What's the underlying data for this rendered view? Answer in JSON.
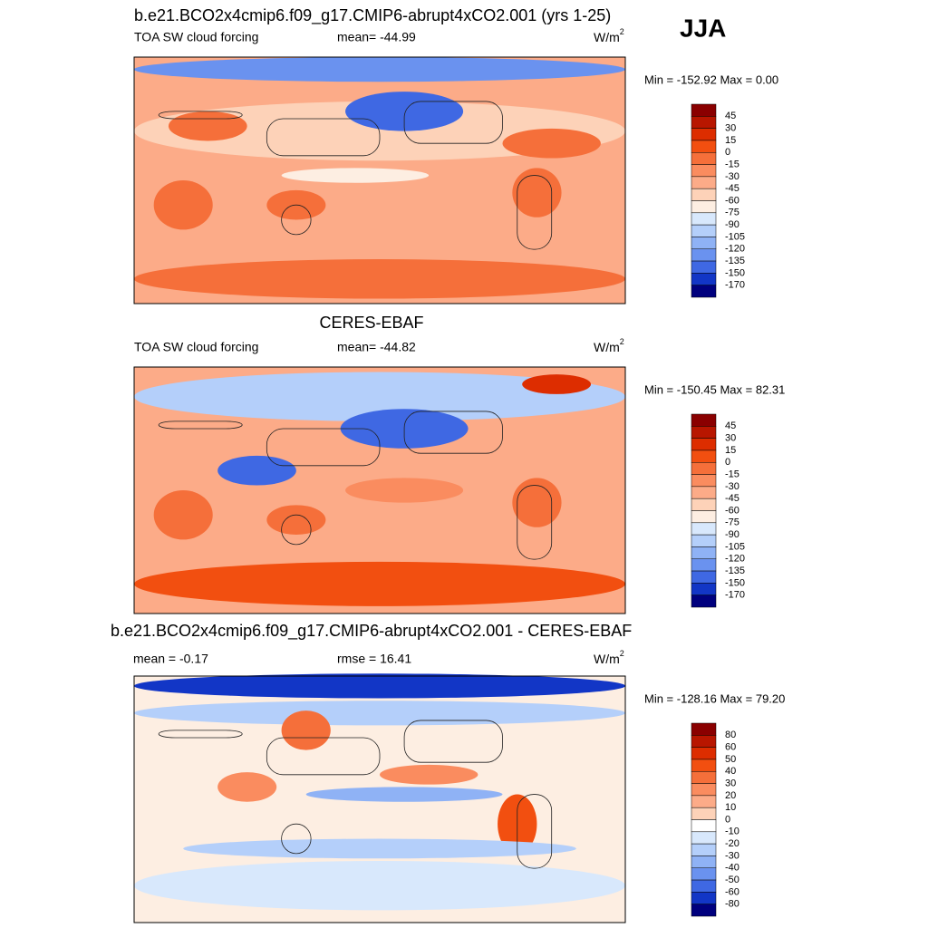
{
  "header": {
    "season": "JJA"
  },
  "panels": [
    {
      "title": "b.e21.BCO2x4cmip6.f09_g17.CMIP6-abrupt4xCO2.001 (yrs 1-25)",
      "variable": "TOA SW cloud forcing",
      "stat": "mean= -44.99",
      "units": "W/m",
      "units_sup": "2",
      "range": "Min = -152.92 Max =   0.00",
      "colorbar": {
        "labels": [
          "45",
          "30",
          "15",
          "0",
          "-15",
          "-30",
          "-45",
          "-60",
          "-75",
          "-90",
          "-105",
          "-120",
          "-135",
          "-150",
          "-170"
        ],
        "colors": [
          "#8a0000",
          "#b81600",
          "#dd2d00",
          "#f24f10",
          "#f56f3a",
          "#fa8c5f",
          "#fcab88",
          "#fdd2b8",
          "#fdeee2",
          "#d8e8fc",
          "#b4cffa",
          "#8fb2f5",
          "#6a92ef",
          "#3f68e3",
          "#1236c6",
          "#00007e"
        ]
      }
    },
    {
      "title": "CERES-EBAF",
      "variable": "TOA SW cloud forcing",
      "stat": "mean= -44.82",
      "units": "W/m",
      "units_sup": "2",
      "range": "Min = -150.45 Max =  82.31",
      "colorbar": {
        "labels": [
          "45",
          "30",
          "15",
          "0",
          "-15",
          "-30",
          "-45",
          "-60",
          "-75",
          "-90",
          "-105",
          "-120",
          "-135",
          "-150",
          "-170"
        ],
        "colors": [
          "#8a0000",
          "#b81600",
          "#dd2d00",
          "#f24f10",
          "#f56f3a",
          "#fa8c5f",
          "#fcab88",
          "#fdd2b8",
          "#fdeee2",
          "#d8e8fc",
          "#b4cffa",
          "#8fb2f5",
          "#6a92ef",
          "#3f68e3",
          "#1236c6",
          "#00007e"
        ]
      }
    },
    {
      "title": "b.e21.BCO2x4cmip6.f09_g17.CMIP6-abrupt4xCO2.001 - CERES-EBAF",
      "stat": "mean =  -0.17",
      "stat2": "rmse =  16.41",
      "units": "W/m",
      "units_sup": "2",
      "range": "Min = -128.16 Max =  79.20",
      "colorbar": {
        "labels": [
          "80",
          "60",
          "50",
          "40",
          "30",
          "20",
          "10",
          "0",
          "-10",
          "-20",
          "-30",
          "-40",
          "-50",
          "-60",
          "-80"
        ],
        "colors": [
          "#8a0000",
          "#b81600",
          "#dd2d00",
          "#f24f10",
          "#f56f3a",
          "#fa8c5f",
          "#fcab88",
          "#fdd2b8",
          "#ffffff",
          "#d8e8fc",
          "#b4cffa",
          "#8fb2f5",
          "#6a92ef",
          "#3f68e3",
          "#1236c6",
          "#00007e"
        ]
      }
    }
  ]
}
